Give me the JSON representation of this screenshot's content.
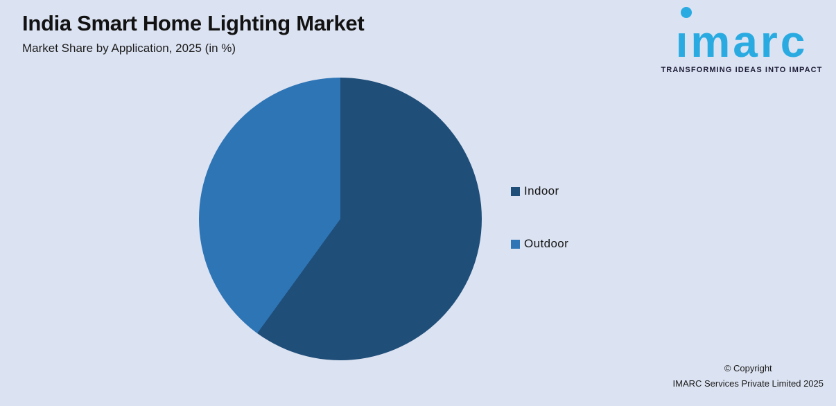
{
  "header": {
    "title": "India Smart Home Lighting Market",
    "subtitle": "Market Share by Application, 2025 (in %)"
  },
  "logo": {
    "wordmark": "imarc",
    "tagline": "TRANSFORMING IDEAS INTO IMPACT",
    "brand_color": "#29ABE2"
  },
  "chart_data": {
    "type": "pie",
    "title": "India Smart Home Lighting Market",
    "subtitle": "Market Share by Application, 2025 (in %)",
    "labels": [
      "Indoor",
      "Outdoor"
    ],
    "values": [
      60,
      40
    ],
    "colors": [
      "#1F4E79",
      "#2E75B6"
    ],
    "start_angle_deg": 0,
    "direction": "clockwise",
    "legend_position": "right",
    "data_labels_shown": false
  },
  "legend": {
    "items": [
      {
        "label": "Indoor",
        "color": "#1F4E79"
      },
      {
        "label": "Outdoor",
        "color": "#2E75B6"
      }
    ]
  },
  "footer": {
    "copyright_line1": "© Copyright",
    "copyright_line2": "IMARC Services Private Limited 2025"
  },
  "colors": {
    "background": "#DBE2F1",
    "pie_indoor": "#1F4E79",
    "pie_outdoor": "#2E75B6"
  }
}
